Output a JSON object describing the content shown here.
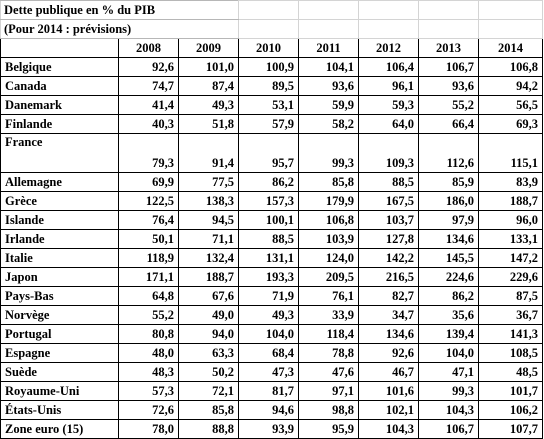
{
  "title_line1": "Dette publique en % du PIB",
  "title_line2": "(Pour 2014 : prévisions)",
  "years": [
    "2008",
    "2009",
    "2010",
    "2011",
    "2012",
    "2013",
    "2014"
  ],
  "rows": [
    {
      "country": "Belgique",
      "values": [
        "92,6",
        "101,0",
        "100,9",
        "104,1",
        "106,4",
        "106,7",
        "106,8"
      ]
    },
    {
      "country": "Canada",
      "values": [
        "74,7",
        "87,4",
        "89,5",
        "93,6",
        "96,1",
        "93,6",
        "94,2"
      ]
    },
    {
      "country": "Danemark",
      "values": [
        "41,4",
        "49,3",
        "53,1",
        "59,9",
        "59,3",
        "55,2",
        "56,5"
      ]
    },
    {
      "country": "Finlande",
      "values": [
        "40,3",
        "51,8",
        "57,9",
        "58,2",
        "64,0",
        "66,4",
        "69,3"
      ]
    },
    {
      "country": "France",
      "values": [
        "79,3",
        "91,4",
        "95,7",
        "99,3",
        "109,3",
        "112,6",
        "115,1"
      ]
    },
    {
      "country": "Allemagne",
      "values": [
        "69,9",
        "77,5",
        "86,2",
        "85,8",
        "88,5",
        "85,9",
        "83,9"
      ]
    },
    {
      "country": "Grèce",
      "values": [
        "122,5",
        "138,3",
        "157,3",
        "179,9",
        "167,5",
        "186,0",
        "188,7"
      ]
    },
    {
      "country": "Islande",
      "values": [
        "76,4",
        "94,5",
        "100,1",
        "106,8",
        "103,7",
        "97,9",
        "96,0"
      ]
    },
    {
      "country": "Irlande",
      "values": [
        "50,1",
        "71,1",
        "88,5",
        "103,9",
        "127,8",
        "134,6",
        "133,1"
      ]
    },
    {
      "country": "Italie",
      "values": [
        "118,9",
        "132,4",
        "131,1",
        "124,0",
        "142,2",
        "145,5",
        "147,2"
      ]
    },
    {
      "country": "Japon",
      "values": [
        "171,1",
        "188,7",
        "193,3",
        "209,5",
        "216,5",
        "224,6",
        "229,6"
      ]
    },
    {
      "country": "Pays-Bas",
      "values": [
        "64,8",
        "67,6",
        "71,9",
        "76,1",
        "82,7",
        "86,2",
        "87,5"
      ]
    },
    {
      "country": "Norvège",
      "values": [
        "55,2",
        "49,0",
        "49,3",
        "33,9",
        "34,7",
        "35,6",
        "36,7"
      ]
    },
    {
      "country": "Portugal",
      "values": [
        "80,8",
        "94,0",
        "104,0",
        "118,4",
        "134,6",
        "139,4",
        "141,3"
      ]
    },
    {
      "country": "Espagne",
      "values": [
        "48,0",
        "63,3",
        "68,4",
        "78,8",
        "92,6",
        "104,0",
        "108,5"
      ]
    },
    {
      "country": "Suède",
      "values": [
        "48,3",
        "50,2",
        "47,3",
        "47,6",
        "46,7",
        "47,1",
        "48,5"
      ]
    },
    {
      "country": "Royaume-Uni",
      "values": [
        "57,3",
        "72,1",
        "81,7",
        "97,1",
        "101,6",
        "99,3",
        "101,7"
      ]
    },
    {
      "country": "États-Unis",
      "values": [
        "72,6",
        "85,8",
        "94,6",
        "98,8",
        "102,1",
        "104,3",
        "106,2"
      ]
    },
    {
      "country": "Zone euro (15)",
      "values": [
        "78,0",
        "88,8",
        "93,9",
        "95,9",
        "104,3",
        "106,7",
        "107,7"
      ]
    }
  ]
}
